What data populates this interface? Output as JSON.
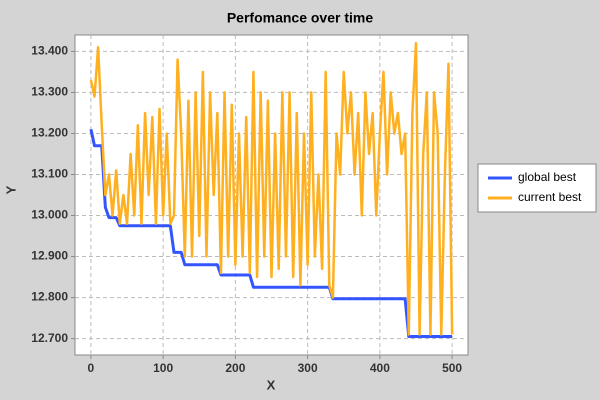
{
  "chart_data": {
    "type": "line",
    "title": "Perfomance over time",
    "x_label": "X",
    "y_label": "Y",
    "x": [
      0,
      5,
      10,
      15,
      20,
      25,
      30,
      35,
      40,
      45,
      50,
      55,
      60,
      65,
      70,
      75,
      80,
      85,
      90,
      95,
      100,
      105,
      110,
      115,
      120,
      125,
      130,
      135,
      140,
      145,
      150,
      155,
      160,
      165,
      170,
      175,
      180,
      185,
      190,
      195,
      200,
      205,
      210,
      215,
      220,
      225,
      230,
      235,
      240,
      245,
      250,
      255,
      260,
      265,
      270,
      275,
      280,
      285,
      290,
      295,
      300,
      305,
      310,
      315,
      320,
      325,
      330,
      335,
      340,
      345,
      350,
      355,
      360,
      365,
      370,
      375,
      380,
      385,
      390,
      395,
      400,
      405,
      410,
      415,
      420,
      425,
      430,
      435,
      440,
      445,
      450,
      455,
      460,
      465,
      470,
      475,
      480,
      485,
      490,
      495,
      500
    ],
    "series": [
      {
        "name": "global best",
        "color": "#3355ff",
        "values": [
          13.21,
          13.17,
          13.17,
          13.17,
          13.02,
          12.995,
          12.995,
          12.995,
          12.975,
          12.975,
          12.975,
          12.975,
          12.975,
          12.975,
          12.975,
          12.975,
          12.975,
          12.975,
          12.975,
          12.975,
          12.975,
          12.975,
          12.975,
          12.91,
          12.91,
          12.91,
          12.88,
          12.88,
          12.88,
          12.88,
          12.88,
          12.88,
          12.88,
          12.88,
          12.88,
          12.88,
          12.855,
          12.855,
          12.855,
          12.855,
          12.855,
          12.855,
          12.855,
          12.855,
          12.855,
          12.825,
          12.825,
          12.825,
          12.825,
          12.825,
          12.825,
          12.825,
          12.825,
          12.825,
          12.825,
          12.825,
          12.825,
          12.825,
          12.825,
          12.825,
          12.825,
          12.825,
          12.825,
          12.825,
          12.825,
          12.825,
          12.825,
          12.797,
          12.797,
          12.797,
          12.797,
          12.797,
          12.797,
          12.797,
          12.797,
          12.797,
          12.797,
          12.797,
          12.797,
          12.797,
          12.797,
          12.797,
          12.797,
          12.797,
          12.797,
          12.797,
          12.797,
          12.797,
          12.705,
          12.705,
          12.705,
          12.705,
          12.705,
          12.705,
          12.705,
          12.705,
          12.705,
          12.705,
          12.705,
          12.705,
          12.705
        ]
      },
      {
        "name": "current best",
        "color": "#ffb020",
        "values": [
          13.33,
          13.29,
          13.41,
          13.22,
          13.05,
          13.1,
          13.0,
          13.11,
          12.98,
          13.05,
          12.98,
          13.15,
          13.0,
          13.22,
          12.98,
          13.25,
          13.05,
          13.24,
          12.98,
          13.26,
          13.0,
          13.2,
          12.98,
          13.0,
          13.38,
          13.2,
          12.9,
          13.28,
          12.9,
          13.3,
          12.95,
          13.35,
          12.9,
          13.3,
          13.05,
          13.25,
          12.86,
          13.3,
          12.9,
          13.27,
          12.88,
          13.2,
          12.9,
          13.24,
          12.86,
          13.35,
          12.85,
          13.3,
          12.9,
          13.28,
          12.85,
          13.2,
          12.87,
          13.3,
          12.9,
          13.3,
          12.85,
          13.25,
          12.83,
          13.2,
          12.88,
          13.3,
          12.9,
          13.1,
          12.87,
          13.35,
          12.83,
          12.8,
          13.2,
          13.1,
          13.35,
          13.2,
          13.3,
          13.1,
          13.25,
          13.0,
          13.3,
          13.15,
          13.25,
          13.0,
          13.2,
          13.35,
          13.1,
          13.3,
          13.2,
          13.25,
          13.15,
          13.2,
          12.71,
          13.25,
          13.42,
          12.71,
          13.15,
          13.3,
          12.71,
          13.3,
          13.2,
          12.71,
          13.1,
          13.37,
          12.71
        ]
      }
    ],
    "xlim": [
      -22,
      522
    ],
    "ylim": [
      12.66,
      13.44
    ],
    "xticks": [
      0,
      100,
      200,
      300,
      400,
      500
    ],
    "yticks": [
      {
        "value": 12.7,
        "label": "12.700"
      },
      {
        "value": 12.8,
        "label": "12.800"
      },
      {
        "value": 12.9,
        "label": "12.900"
      },
      {
        "value": 13.0,
        "label": "13.000"
      },
      {
        "value": 13.1,
        "label": "13.100"
      },
      {
        "value": 13.2,
        "label": "13.200"
      },
      {
        "value": 13.3,
        "label": "13.300"
      },
      {
        "value": 13.4,
        "label": "13.400"
      }
    ],
    "grid": true,
    "legend": "right"
  }
}
